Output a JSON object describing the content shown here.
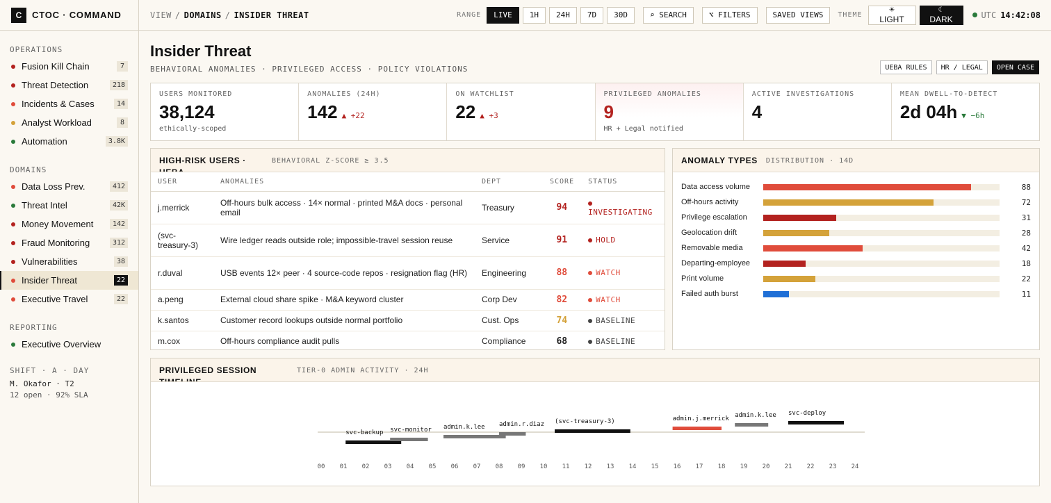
{
  "brand": {
    "logo": "C",
    "name": "CTOC · COMMAND"
  },
  "sidebar": {
    "sections": [
      {
        "title": "OPERATIONS",
        "items": [
          {
            "label": "Fusion Kill Chain",
            "count": "7",
            "color": "#b3221f"
          },
          {
            "label": "Threat Detection",
            "count": "218",
            "color": "#b3221f"
          },
          {
            "label": "Incidents & Cases",
            "count": "14",
            "color": "#e04c3b"
          },
          {
            "label": "Analyst Workload",
            "count": "8",
            "color": "#d4a23a"
          },
          {
            "label": "Automation",
            "count": "3.8K",
            "color": "#2a7a3b"
          }
        ]
      },
      {
        "title": "DOMAINS",
        "items": [
          {
            "label": "Data Loss Prev.",
            "count": "412",
            "color": "#e04c3b"
          },
          {
            "label": "Threat Intel",
            "count": "42K",
            "color": "#2a7a3b"
          },
          {
            "label": "Money Movement",
            "count": "142",
            "color": "#b3221f"
          },
          {
            "label": "Fraud Monitoring",
            "count": "312",
            "color": "#b3221f"
          },
          {
            "label": "Vulnerabilities",
            "count": "38",
            "color": "#b3221f"
          },
          {
            "label": "Insider Threat",
            "count": "22",
            "color": "#e04c3b",
            "active": true
          },
          {
            "label": "Executive Travel",
            "count": "22",
            "color": "#e04c3b"
          }
        ]
      },
      {
        "title": "REPORTING",
        "items": [
          {
            "label": "Executive Overview",
            "count": "",
            "color": "#2a7a3b"
          }
        ]
      }
    ],
    "shift": {
      "title": "SHIFT · A · DAY",
      "user": "M. Okafor · T2",
      "stats": "12 open · 92% SLA"
    }
  },
  "topbar": {
    "crumbs": [
      "VIEW",
      "DOMAINS",
      "INSIDER THREAT"
    ],
    "range_label": "RANGE",
    "ranges": [
      "LIVE",
      "1H",
      "24H",
      "7D",
      "30D"
    ],
    "active_range": "LIVE",
    "search": "⌕ SEARCH",
    "filters": "⌥ FILTERS",
    "saved_views": "SAVED VIEWS",
    "theme_label": "THEME",
    "theme_light": "LIGHT",
    "theme_dark": "DARK",
    "tz": "UTC",
    "time": "14:42:08"
  },
  "header": {
    "title": "Insider Threat",
    "subtitle": "BEHAVIORAL ANOMALIES · PRIVILEGED ACCESS · POLICY VIOLATIONS",
    "actions": {
      "ueba": "UEBA RULES",
      "hr": "HR / LEGAL",
      "open": "OPEN CASE"
    }
  },
  "kpis": [
    {
      "label": "USERS MONITORED",
      "value": "38,124",
      "delta": "",
      "note": "ethically-scoped"
    },
    {
      "label": "ANOMALIES (24H)",
      "value": "142",
      "delta": "▲ +22",
      "dir": "up",
      "note": ""
    },
    {
      "label": "ON WATCHLIST",
      "value": "22",
      "delta": "▲ +3",
      "dir": "up",
      "note": ""
    },
    {
      "label": "PRIVILEGED ANOMALIES",
      "value": "9",
      "delta": "",
      "note": "HR + Legal notified",
      "alert": true
    },
    {
      "label": "ACTIVE INVESTIGATIONS",
      "value": "4",
      "delta": "",
      "note": ""
    },
    {
      "label": "MEAN DWELL-TO-DETECT",
      "value": "2d 04h",
      "delta": "▼ −6h",
      "dir": "down",
      "note": ""
    }
  ],
  "users_panel": {
    "title": "HIGH-RISK USERS · UEBA",
    "sub": "BEHAVIORAL Z-SCORE ≥ 3.5",
    "columns": [
      "USER",
      "ANOMALIES",
      "DEPT",
      "SCORE",
      "STATUS"
    ],
    "rows": [
      {
        "user": "j.merrick",
        "anomalies": "Off-hours bulk access · 14× normal · printed M&A docs · personal email",
        "dept": "Treasury",
        "score": "94",
        "score_color": "#b3221f",
        "status": "INVESTIGATING",
        "status_color": "#b3221f"
      },
      {
        "user": "(svc-treasury-3)",
        "anomalies": "Wire ledger reads outside role; impossible-travel session reuse",
        "dept": "Service",
        "score": "91",
        "score_color": "#b3221f",
        "status": "HOLD",
        "status_color": "#b3221f"
      },
      {
        "user": "r.duval",
        "anomalies": "USB events 12× peer · 4 source-code repos · resignation flag (HR)",
        "dept": "Engineering",
        "score": "88",
        "score_color": "#e04c3b",
        "status": "WATCH",
        "status_color": "#e04c3b"
      },
      {
        "user": "a.peng",
        "anomalies": "External cloud share spike · M&A keyword cluster",
        "dept": "Corp Dev",
        "score": "82",
        "score_color": "#e04c3b",
        "status": "WATCH",
        "status_color": "#e04c3b"
      },
      {
        "user": "k.santos",
        "anomalies": "Customer record lookups outside normal portfolio",
        "dept": "Cust. Ops",
        "score": "74",
        "score_color": "#d4a23a",
        "status": "BASELINE",
        "status_color": "#444"
      },
      {
        "user": "m.cox",
        "anomalies": "Off-hours compliance audit pulls",
        "dept": "Compliance",
        "score": "68",
        "score_color": "#222",
        "status": "BASELINE",
        "status_color": "#444"
      }
    ]
  },
  "anomaly_panel": {
    "title": "ANOMALY TYPES",
    "sub": "DISTRIBUTION · 14D",
    "max": 100,
    "items": [
      {
        "label": "Data access volume",
        "value": 88,
        "color": "#e04c3b"
      },
      {
        "label": "Off-hours activity",
        "value": 72,
        "color": "#d4a23a"
      },
      {
        "label": "Privilege escalation",
        "value": 31,
        "color": "#b3221f"
      },
      {
        "label": "Geolocation drift",
        "value": 28,
        "color": "#d4a23a"
      },
      {
        "label": "Removable media",
        "value": 42,
        "color": "#e04c3b"
      },
      {
        "label": "Departing-employee",
        "value": 18,
        "color": "#b3221f"
      },
      {
        "label": "Print volume",
        "value": 22,
        "color": "#d4a23a"
      },
      {
        "label": "Failed auth burst",
        "value": 11,
        "color": "#1f6fd6"
      }
    ]
  },
  "timeline_panel": {
    "title": "PRIVILEGED SESSION TIMELINE",
    "sub": "TIER-0 ADMIN ACTIVITY · 24H",
    "hours": [
      "00",
      "01",
      "02",
      "03",
      "04",
      "05",
      "06",
      "07",
      "08",
      "09",
      "10",
      "11",
      "12",
      "13",
      "14",
      "15",
      "16",
      "17",
      "18",
      "19",
      "20",
      "21",
      "22",
      "23",
      "24"
    ],
    "sessions": [
      {
        "label": "svc-backup",
        "start": 1.1,
        "end": 3.6,
        "color": "#111",
        "level": 0
      },
      {
        "label": "svc-monitor",
        "start": 3.1,
        "end": 4.8,
        "color": "#777",
        "level": 1
      },
      {
        "label": "admin.k.lee",
        "start": 5.5,
        "end": 8.3,
        "color": "#777",
        "level": 2
      },
      {
        "label": "admin.r.diaz",
        "start": 8.0,
        "end": 9.2,
        "color": "#777",
        "level": 3
      },
      {
        "label": "(svc-treasury-3)",
        "start": 10.5,
        "end": 13.9,
        "color": "#111",
        "level": 4
      },
      {
        "label": "admin.j.merrick",
        "start": 15.8,
        "end": 18.0,
        "color": "#e04c3b",
        "level": 5
      },
      {
        "label": "admin.k.lee",
        "start": 18.6,
        "end": 20.1,
        "color": "#777",
        "level": 6
      },
      {
        "label": "svc-deploy",
        "start": 21.0,
        "end": 23.5,
        "color": "#111",
        "level": 7
      }
    ]
  }
}
